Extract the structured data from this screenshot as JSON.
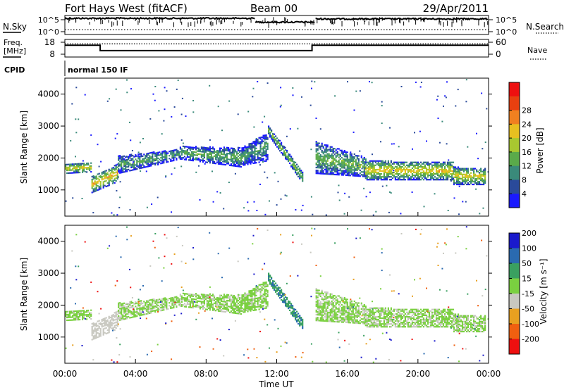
{
  "chart_data": {
    "type": "heatmap",
    "title": "Fort Hays West (fitACF)",
    "beam": "Beam 00",
    "date": "29/Apr/2011",
    "xlabel": "Time UT",
    "x_ticks": [
      "00:00",
      "04:00",
      "08:00",
      "12:00",
      "16:00",
      "20:00",
      "00:00"
    ],
    "xlim_hours": [
      0,
      24
    ],
    "ylabel": "Slant Range [km]",
    "ylim_km": [
      180,
      4500
    ],
    "y_ticks": [
      1000,
      2000,
      3000,
      4000
    ],
    "noise_panel": {
      "left_label": "N.Sky",
      "right_label": "N.Search",
      "left_ticks": [
        "10^5",
        "10^0"
      ],
      "right_ticks": [
        "10^5",
        "10^0"
      ],
      "sky_level_segments": [
        {
          "start": 0,
          "end": 10.8,
          "level": 0.85
        },
        {
          "start": 10.8,
          "end": 14.2,
          "level": 0.65
        },
        {
          "start": 14.2,
          "end": 24,
          "level": 0.82
        }
      ],
      "search_level": 0.25
    },
    "freq_panel": {
      "left_label_line1": "Freq.",
      "left_label_line2": "[MHz]",
      "right_label": "Nave",
      "left_ticks": [
        "18",
        "8"
      ],
      "right_ticks": [
        "60",
        "0"
      ],
      "freq_mhz_segments": [
        {
          "start": 0,
          "end": 2.0,
          "value": 15.5
        },
        {
          "start": 2.0,
          "end": 14.0,
          "value": 11.0
        },
        {
          "start": 14.0,
          "end": 24,
          "value": 15.5
        }
      ],
      "nave_level": 52
    },
    "cpid": {
      "label": "CPID",
      "text": "normal 150 IF"
    },
    "power_panel": {
      "colorbar_label": "Power [dB]",
      "colorbar_ticks": [
        "4",
        "8",
        "12",
        "16",
        "20",
        "24",
        "28"
      ],
      "colors": [
        "#1a1aff",
        "#2a4a9a",
        "#3a8a7a",
        "#5aaa4a",
        "#a8c830",
        "#e8c020",
        "#f08020",
        "#e84010",
        "#ee1010"
      ]
    },
    "velocity_panel": {
      "colorbar_label": "Velocity [m s⁻¹]",
      "colorbar_ticks": [
        "200",
        "100",
        "50",
        "15",
        "-15",
        "-50",
        "-100",
        "-200"
      ],
      "colors": [
        "#1a1acc",
        "#2a6ab0",
        "#3aa060",
        "#7ad040",
        "#c8c8c0",
        "#e8a020",
        "#f06010",
        "#ee1010"
      ]
    },
    "echo_bands": [
      {
        "t": [
          0.0,
          1.5
        ],
        "r0": [
          1500,
          1550
        ],
        "r1": [
          1800,
          1850
        ],
        "p": 16,
        "v": -5
      },
      {
        "t": [
          1.5,
          3.0
        ],
        "r0": [
          900,
          1250
        ],
        "r1": [
          1400,
          1800
        ],
        "p": 18,
        "v": -30
      },
      {
        "t": [
          3.0,
          6.5
        ],
        "r0": [
          1500,
          1950
        ],
        "r1": [
          2050,
          2250
        ],
        "p": 9,
        "v": -10
      },
      {
        "t": [
          6.5,
          10.0
        ],
        "r0": [
          1950,
          1700
        ],
        "r1": [
          2350,
          2300
        ],
        "p": 10,
        "v": -8
      },
      {
        "t": [
          10.0,
          11.5
        ],
        "r0": [
          1750,
          1900
        ],
        "r1": [
          2300,
          2800
        ],
        "p": 8,
        "v": -5
      },
      {
        "t": [
          11.5,
          13.5
        ],
        "r0": [
          2700,
          1150
        ],
        "r1": [
          3000,
          1500
        ],
        "p": 12,
        "v": 45
      },
      {
        "t": [
          14.2,
          17.0
        ],
        "r0": [
          1500,
          1400
        ],
        "r1": [
          2500,
          2000
        ],
        "p": 11,
        "v": -8
      },
      {
        "t": [
          17.0,
          22.0
        ],
        "r0": [
          1300,
          1300
        ],
        "r1": [
          1900,
          1850
        ],
        "p": 17,
        "v": -10
      },
      {
        "t": [
          22.0,
          23.8
        ],
        "r0": [
          1150,
          1150
        ],
        "r1": [
          1700,
          1650
        ],
        "p": 16,
        "v": -10
      }
    ]
  }
}
